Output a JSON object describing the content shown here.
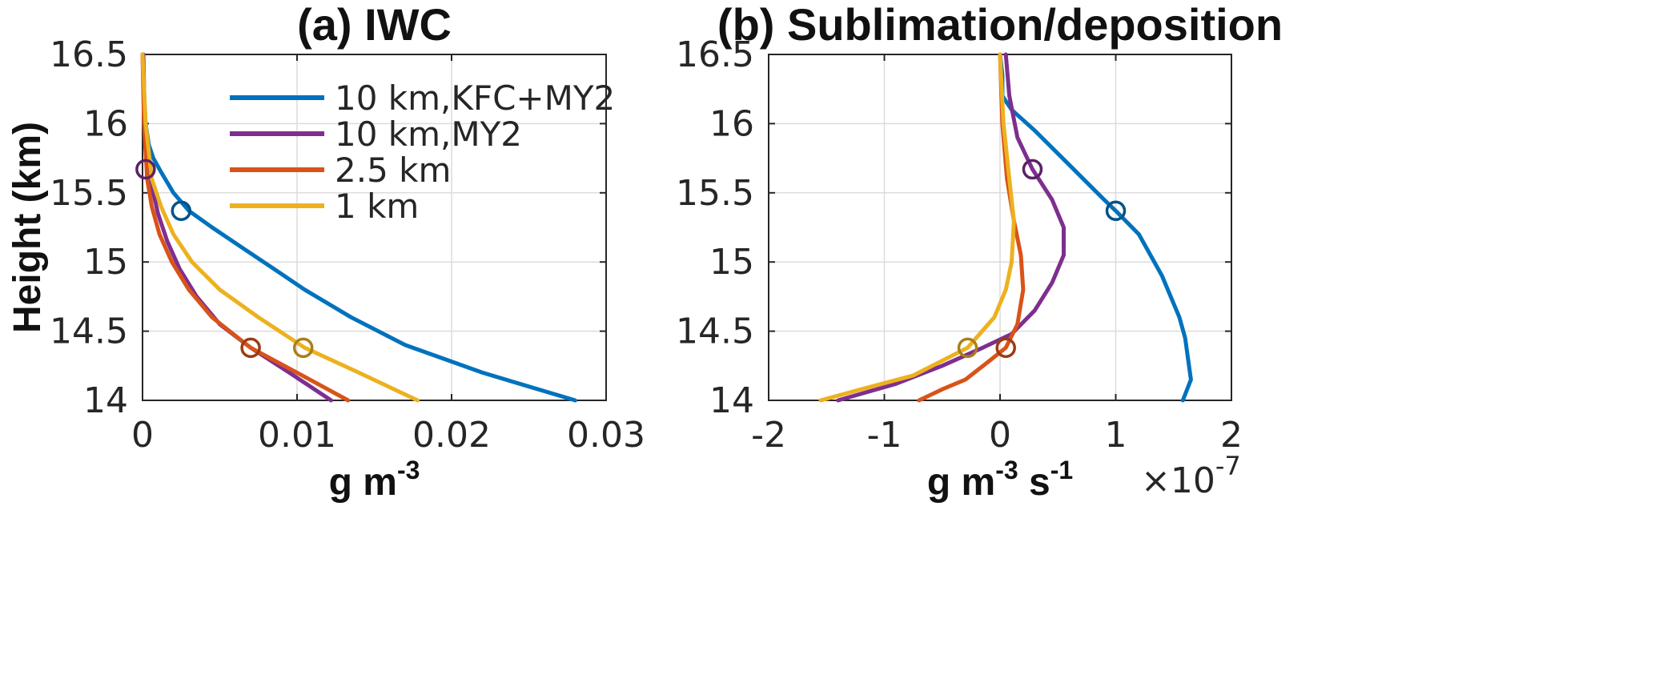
{
  "chart_data": [
    {
      "type": "line",
      "title": "(a) IWC",
      "xlabel": "g m",
      "xlabel_sup": "-3",
      "ylabel": "Height (km)",
      "xlim": [
        0,
        0.03
      ],
      "ylim": [
        14,
        16.5
      ],
      "xticks": [
        "0",
        "0.01",
        "0.02",
        "0.03"
      ],
      "yticks": [
        "14",
        "14.5",
        "15",
        "15.5",
        "16",
        "16.5"
      ],
      "grid": true,
      "legend_position": "top-right",
      "series": [
        {
          "name": "10 km,KFC+MY2",
          "color": "#0072bd",
          "x": [
            0.028,
            0.022,
            0.017,
            0.0135,
            0.0105,
            0.0085,
            0.0065,
            0.0045,
            0.003,
            0.002,
            0.0012,
            0.0007,
            0.0004,
            0.0002,
            0.0001,
            0.0
          ],
          "y": [
            14.0,
            14.2,
            14.4,
            14.6,
            14.8,
            14.95,
            15.1,
            15.25,
            15.37,
            15.5,
            15.65,
            15.75,
            15.85,
            16.0,
            16.2,
            16.5
          ],
          "marker": {
            "x": 0.0025,
            "y": 15.37
          }
        },
        {
          "name": "10 km,MY2",
          "color": "#7e2f8e",
          "x": [
            0.0122,
            0.0095,
            0.007,
            0.005,
            0.0035,
            0.0024,
            0.0016,
            0.001,
            0.0006,
            0.0003,
            0.00015,
            5e-05
          ],
          "y": [
            14.0,
            14.2,
            14.38,
            14.55,
            14.75,
            14.95,
            15.15,
            15.35,
            15.55,
            15.75,
            16.0,
            16.5
          ],
          "marker": {
            "x": 0.0002,
            "y": 15.67
          }
        },
        {
          "name": "2.5 km",
          "color": "#d95319",
          "x": [
            0.0133,
            0.01,
            0.007,
            0.0045,
            0.003,
            0.0019,
            0.0011,
            0.0006,
            0.0003,
            0.0001,
            0.0
          ],
          "y": [
            14.0,
            14.2,
            14.38,
            14.6,
            14.8,
            15.0,
            15.2,
            15.4,
            15.6,
            16.0,
            16.5
          ],
          "marker": {
            "x": 0.007,
            "y": 14.38
          }
        },
        {
          "name": "1 km",
          "color": "#edb120",
          "x": [
            0.0178,
            0.014,
            0.0105,
            0.0075,
            0.005,
            0.0032,
            0.002,
            0.0012,
            0.0006,
            0.0002,
            0.0
          ],
          "y": [
            14.0,
            14.2,
            14.38,
            14.6,
            14.8,
            15.0,
            15.2,
            15.4,
            15.6,
            16.0,
            16.5
          ],
          "marker": {
            "x": 0.0104,
            "y": 14.38
          }
        }
      ]
    },
    {
      "type": "line",
      "title": "(b) Sublimation/deposition",
      "xlabel": "g m",
      "xlabel_sup": "-3",
      "xlabel_mid": " s",
      "xlabel_sup2": "-1",
      "multiplier": "×10",
      "multiplier_exp": "-7",
      "xlim": [
        -2,
        2
      ],
      "ylim": [
        14,
        16.5
      ],
      "xticks": [
        "-2",
        "-1",
        "0",
        "1",
        "2"
      ],
      "yticks": [
        "14",
        "14.5",
        "15",
        "15.5",
        "16",
        "16.5"
      ],
      "grid": true,
      "series": [
        {
          "name": "10 km,KFC+MY2",
          "color": "#0072bd",
          "x": [
            1.58,
            1.65,
            1.6,
            1.55,
            1.4,
            1.2,
            1.0,
            0.9,
            0.6,
            0.3,
            0.1,
            0.02,
            0.02,
            0.0
          ],
          "y": [
            14.0,
            14.15,
            14.45,
            14.6,
            14.9,
            15.2,
            15.37,
            15.45,
            15.7,
            15.95,
            16.1,
            16.2,
            16.35,
            16.5
          ],
          "marker": {
            "x": 1.0,
            "y": 15.37
          }
        },
        {
          "name": "10 km,MY2",
          "color": "#7e2f8e",
          "x": [
            -1.4,
            -0.9,
            -0.5,
            -0.15,
            0.1,
            0.3,
            0.45,
            0.55,
            0.55,
            0.45,
            0.28,
            0.15,
            0.08,
            0.05
          ],
          "y": [
            14.0,
            14.12,
            14.25,
            14.38,
            14.48,
            14.65,
            14.85,
            15.05,
            15.25,
            15.45,
            15.67,
            15.9,
            16.2,
            16.5
          ],
          "marker": {
            "x": 0.28,
            "y": 15.67
          }
        },
        {
          "name": "2.5 km",
          "color": "#d95319",
          "x": [
            -0.7,
            -0.5,
            -0.3,
            -0.1,
            0.05,
            0.15,
            0.2,
            0.18,
            0.12,
            0.06,
            0.02,
            0.0
          ],
          "y": [
            14.0,
            14.08,
            14.15,
            14.28,
            14.38,
            14.55,
            14.8,
            15.05,
            15.3,
            15.6,
            16.0,
            16.5
          ],
          "marker": {
            "x": 0.05,
            "y": 14.38
          }
        },
        {
          "name": "1 km",
          "color": "#edb120",
          "x": [
            -1.55,
            -1.2,
            -0.75,
            -0.28,
            -0.05,
            0.05,
            0.1,
            0.12,
            0.08,
            0.03,
            0.0
          ],
          "y": [
            14.0,
            14.08,
            14.18,
            14.38,
            14.6,
            14.8,
            15.0,
            15.3,
            15.6,
            16.0,
            16.5
          ],
          "marker": {
            "x": -0.28,
            "y": 14.38
          }
        }
      ]
    }
  ]
}
